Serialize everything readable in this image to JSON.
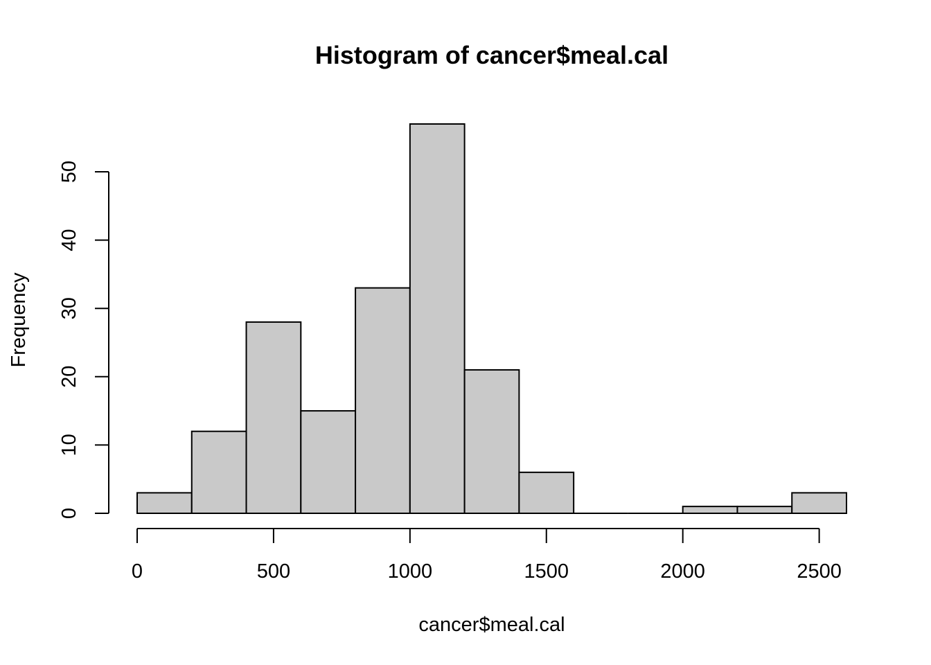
{
  "chart_data": {
    "type": "bar",
    "title": "Histogram of cancer$meal.cal",
    "xlabel": "cancer$meal.cal",
    "ylabel": "Frequency",
    "bin_edges": [
      0,
      200,
      400,
      600,
      800,
      1000,
      1200,
      1400,
      1600,
      1800,
      2000,
      2200,
      2400,
      2600
    ],
    "values": [
      3,
      12,
      28,
      15,
      33,
      57,
      21,
      6,
      0,
      0,
      1,
      1,
      3
    ],
    "xlim": [
      0,
      2600
    ],
    "ylim": [
      0,
      57
    ],
    "x_ticks": [
      0,
      500,
      1000,
      1500,
      2000,
      2500
    ],
    "y_ticks": [
      0,
      10,
      20,
      30,
      40,
      50
    ],
    "bar_color": "#c9c9c9",
    "grid": false,
    "legend": "none"
  }
}
